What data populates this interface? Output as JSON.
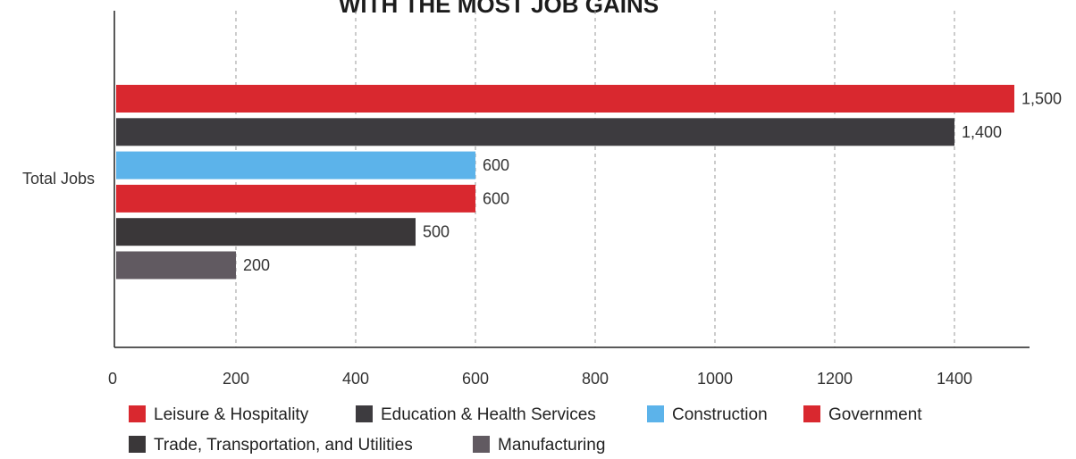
{
  "chart_data": {
    "type": "bar",
    "orientation": "horizontal",
    "title": "WITH THE MOST JOB GAINS",
    "xlabel": "",
    "ylabel": "Total Jobs",
    "categories": [
      "Total Jobs"
    ],
    "xlim": [
      0,
      1600
    ],
    "x_ticks": [
      0,
      200,
      400,
      600,
      800,
      1000,
      1200,
      1400
    ],
    "x_tick_labels": [
      "0",
      "200",
      "400",
      "600",
      "800",
      "1000",
      "1200",
      "1400"
    ],
    "grid": true,
    "legend_position": "bottom",
    "series": [
      {
        "name": "Leisure & Hospitality",
        "values": [
          1500
        ],
        "label": "1,500",
        "color": "#d9282f"
      },
      {
        "name": "Education & Health Services",
        "values": [
          1400
        ],
        "label": "1,400",
        "color": "#3d3b3f"
      },
      {
        "name": "Construction",
        "values": [
          600
        ],
        "label": "600",
        "color": "#5cb3ea"
      },
      {
        "name": "Government",
        "values": [
          600
        ],
        "label": "600",
        "color": "#d9282f"
      },
      {
        "name": "Trade, Transportation, and Utilities",
        "values": [
          500
        ],
        "label": "500",
        "color": "#3a3739"
      },
      {
        "name": "Manufacturing",
        "values": [
          200
        ],
        "label": "200",
        "color": "#615a61"
      }
    ]
  }
}
